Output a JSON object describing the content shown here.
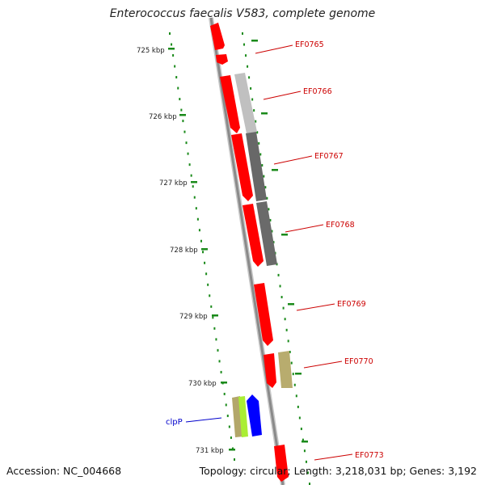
{
  "title": "Enterococcus faecalis V583, complete genome",
  "footer": {
    "accession": "Accession: NC_004668",
    "summary": "Topology: circular; Length: 3,218,031 bp; Genes: 3,192"
  },
  "colors": {
    "backbone": "#8c8c8c",
    "forward_gene": "#ff0000",
    "tick_dot": "#1a8a1a",
    "locus_label": "#cc0000",
    "clp_label": "#0000cc"
  },
  "scale_labels": [
    "725 kbp",
    "726 kbp",
    "727 kbp",
    "728 kbp",
    "729 kbp",
    "730 kbp",
    "731 kbp"
  ],
  "gene_labels": [
    "EF0765",
    "EF0766",
    "EF0767",
    "EF0768",
    "EF0769",
    "EF0770",
    "EF0773"
  ],
  "clp_label": "clpP"
}
